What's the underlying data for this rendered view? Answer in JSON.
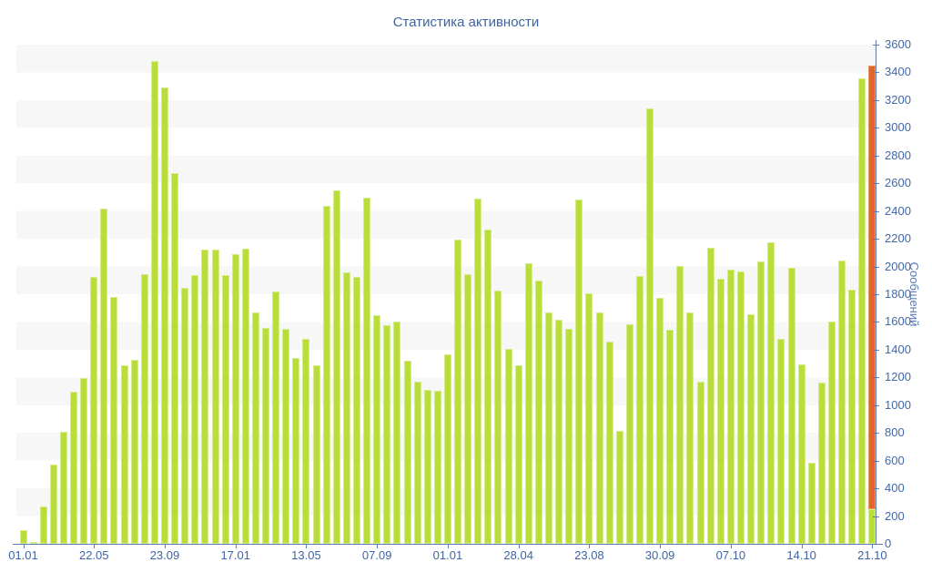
{
  "chart_data": {
    "type": "bar",
    "title": "Статистика активности",
    "ylabel": "Сообщений",
    "xlabel": "",
    "ylim": [
      0,
      3600
    ],
    "y_ticks": [
      0,
      200,
      400,
      600,
      800,
      1000,
      1200,
      1400,
      1600,
      1800,
      2000,
      2200,
      2400,
      2600,
      2800,
      3000,
      3200,
      3400,
      3600
    ],
    "x_tick_labels": [
      "01.01",
      "22.05",
      "23.09",
      "17.01",
      "13.05",
      "07.09",
      "01.01",
      "28.04",
      "23.08",
      "30.09",
      "07.10",
      "14.10",
      "21.10"
    ],
    "x_label_every": 7,
    "legend_position": "none",
    "grid": "striped-horizontal-bands",
    "values": [
      100,
      15,
      270,
      570,
      810,
      1100,
      1195,
      1925,
      2420,
      1780,
      1285,
      1330,
      1945,
      3480,
      3290,
      2675,
      1845,
      1940,
      2120,
      2120,
      1940,
      2090,
      2130,
      1670,
      1555,
      1820,
      1550,
      1340,
      1480,
      1290,
      2440,
      2550,
      1955,
      1925,
      2495,
      1650,
      1575,
      1600,
      1320,
      1170,
      1110,
      1105,
      1365,
      2195,
      1945,
      2490,
      2265,
      1825,
      1405,
      1290,
      2025,
      1900,
      1670,
      1615,
      1550,
      2485,
      1805,
      1670,
      1460,
      815,
      1585,
      1930,
      3140,
      1775,
      1545,
      2005,
      1670,
      1170,
      2135,
      1910,
      1975,
      1965,
      1655,
      2035,
      2175,
      1480,
      1990,
      1295,
      585,
      1160,
      1605,
      2045,
      1830,
      3355,
      3450
    ],
    "last_bar_overlay": {
      "green_base": 250,
      "total": 3450
    },
    "colors": {
      "bar": "#b9de3a",
      "bar_edge": "#d6ec8c",
      "accent": "#e0662e",
      "accent_edge": "#eb9a66",
      "stripe": "#f7f7f7",
      "axis": "#5f7cae",
      "tick_label": "#4168a8",
      "title": "#40639e"
    }
  }
}
